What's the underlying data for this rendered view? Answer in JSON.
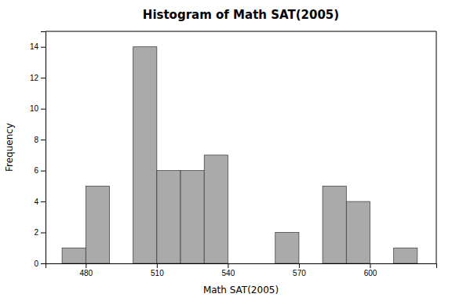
{
  "chart_data": {
    "type": "histogram",
    "title": "Histogram of Math SAT(2005)",
    "x_label": "Math SAT(2005)",
    "y_label": "Frequency",
    "bins": [
      470,
      480,
      490,
      500,
      510,
      520,
      530,
      540,
      550,
      560,
      570,
      580,
      590,
      600,
      610,
      620
    ],
    "values": [
      1,
      5,
      0,
      14,
      6,
      6,
      7,
      0,
      0,
      2,
      0,
      5,
      4,
      0,
      1
    ],
    "color": "#aaaaaa",
    "xlim": [
      463,
      628
    ],
    "ylim": [
      0,
      15
    ],
    "xticks": [
      480,
      510,
      540,
      570,
      600
    ],
    "yticks": [
      0,
      2,
      4,
      6,
      8,
      10,
      12,
      14
    ],
    "grid": false
  }
}
